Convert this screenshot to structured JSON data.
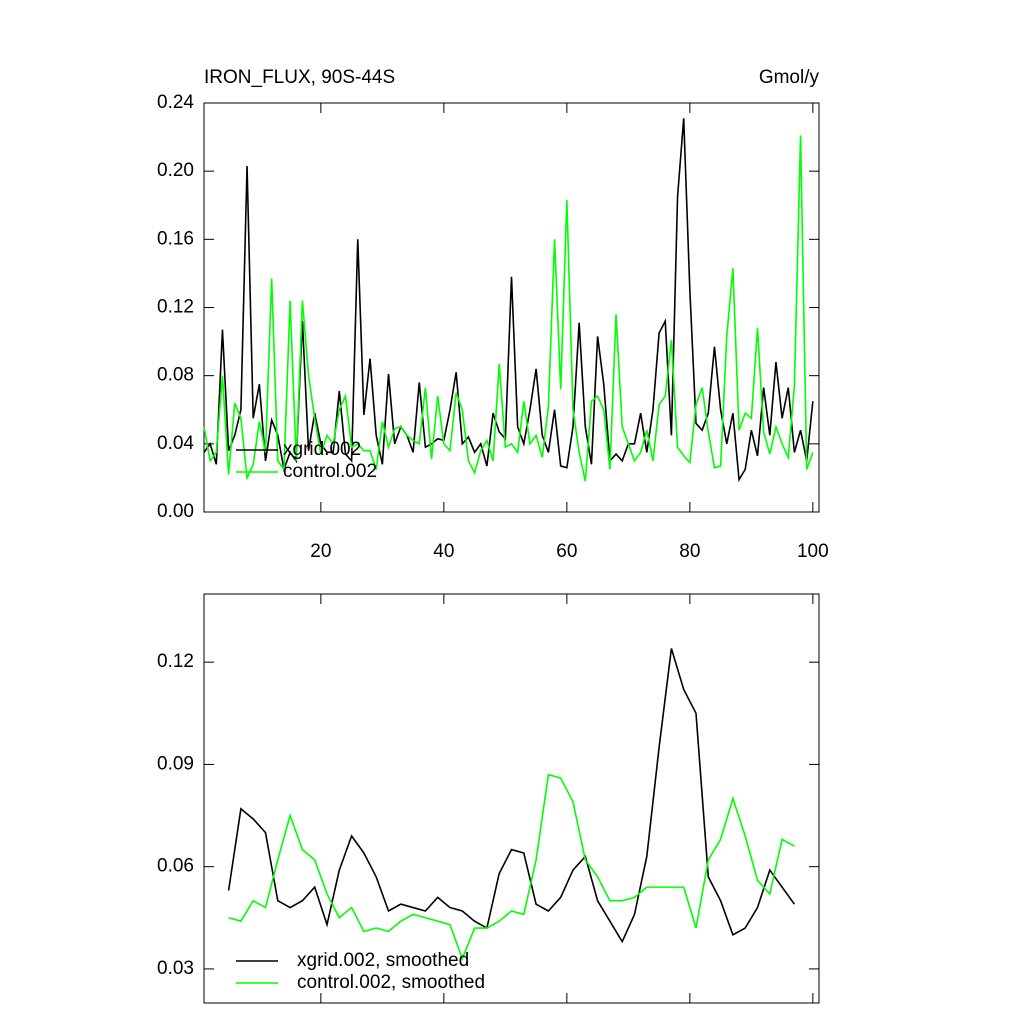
{
  "chart_data": [
    {
      "type": "line",
      "title": "IRON_FLUX, 90S-44S",
      "right_title": "Gmol/y",
      "x": [
        1,
        2,
        3,
        4,
        5,
        6,
        7,
        8,
        9,
        10,
        11,
        12,
        13,
        14,
        15,
        16,
        17,
        18,
        19,
        20,
        21,
        22,
        23,
        24,
        25,
        26,
        27,
        28,
        29,
        30,
        31,
        32,
        33,
        34,
        35,
        36,
        37,
        38,
        39,
        40,
        41,
        42,
        43,
        44,
        45,
        46,
        47,
        48,
        49,
        50,
        51,
        52,
        53,
        54,
        55,
        56,
        57,
        58,
        59,
        60,
        61,
        62,
        63,
        64,
        65,
        66,
        67,
        68,
        69,
        70,
        71,
        72,
        73,
        74,
        75,
        76,
        77,
        78,
        79,
        80,
        81,
        82,
        83,
        84,
        85,
        86,
        87,
        88,
        89,
        90,
        91,
        92,
        93,
        94,
        95,
        96,
        97,
        98,
        99,
        100
      ],
      "series": [
        {
          "name": "xgrid.002",
          "color": "#000000",
          "values": [
            0.035,
            0.04,
            0.028,
            0.107,
            0.036,
            0.045,
            0.06,
            0.203,
            0.055,
            0.075,
            0.03,
            0.054,
            0.045,
            0.025,
            0.035,
            0.03,
            0.112,
            0.036,
            0.058,
            0.04,
            0.035,
            0.035,
            0.071,
            0.034,
            0.03,
            0.16,
            0.057,
            0.09,
            0.045,
            0.028,
            0.081,
            0.04,
            0.05,
            0.045,
            0.035,
            0.076,
            0.038,
            0.04,
            0.043,
            0.042,
            0.06,
            0.082,
            0.04,
            0.044,
            0.035,
            0.04,
            0.027,
            0.058,
            0.047,
            0.043,
            0.138,
            0.05,
            0.04,
            0.06,
            0.084,
            0.045,
            0.035,
            0.06,
            0.027,
            0.026,
            0.05,
            0.111,
            0.05,
            0.028,
            0.103,
            0.075,
            0.03,
            0.034,
            0.03,
            0.04,
            0.04,
            0.058,
            0.035,
            0.06,
            0.105,
            0.112,
            0.045,
            0.185,
            0.231,
            0.13,
            0.052,
            0.048,
            0.058,
            0.097,
            0.06,
            0.04,
            0.058,
            0.019,
            0.025,
            0.048,
            0.033,
            0.073,
            0.045,
            0.088,
            0.055,
            0.073,
            0.035,
            0.048,
            0.03,
            0.065
          ]
        },
        {
          "name": "control.002",
          "color": "#00ff00",
          "values": [
            0.05,
            0.03,
            0.035,
            0.08,
            0.022,
            0.064,
            0.055,
            0.02,
            0.028,
            0.053,
            0.035,
            0.137,
            0.03,
            0.025,
            0.124,
            0.03,
            0.124,
            0.08,
            0.055,
            0.034,
            0.045,
            0.04,
            0.06,
            0.068,
            0.038,
            0.04,
            0.036,
            0.036,
            0.025,
            0.053,
            0.038,
            0.049,
            0.05,
            0.045,
            0.042,
            0.04,
            0.073,
            0.031,
            0.068,
            0.04,
            0.036,
            0.07,
            0.06,
            0.03,
            0.023,
            0.036,
            0.042,
            0.03,
            0.087,
            0.038,
            0.04,
            0.035,
            0.065,
            0.04,
            0.045,
            0.032,
            0.062,
            0.16,
            0.072,
            0.183,
            0.06,
            0.035,
            0.018,
            0.065,
            0.068,
            0.06,
            0.025,
            0.116,
            0.05,
            0.04,
            0.03,
            0.035,
            0.048,
            0.03,
            0.063,
            0.068,
            0.101,
            0.038,
            0.033,
            0.029,
            0.063,
            0.073,
            0.047,
            0.026,
            0.027,
            0.103,
            0.143,
            0.048,
            0.058,
            0.055,
            0.108,
            0.047,
            0.034,
            0.05,
            0.04,
            0.032,
            0.074,
            0.221,
            0.025,
            0.035
          ]
        }
      ],
      "xlim": [
        1,
        101
      ],
      "xticks": [
        20,
        40,
        60,
        80,
        100
      ],
      "ylim": [
        0,
        0.24
      ],
      "yticks": [
        {
          "value": 0,
          "label": "0.00"
        },
        0.04,
        0.08,
        0.12,
        0.16,
        {
          "value": 0.2,
          "label": "0.20"
        },
        0.24
      ],
      "legend": "lower left"
    },
    {
      "type": "line",
      "x": [
        5,
        7,
        9,
        11,
        13,
        15,
        17,
        19,
        21,
        23,
        25,
        27,
        29,
        31,
        33,
        35,
        37,
        39,
        41,
        43,
        45,
        47,
        49,
        51,
        53,
        55,
        57,
        59,
        61,
        63,
        65,
        67,
        69,
        71,
        73,
        75,
        77,
        79,
        81,
        83,
        85,
        87,
        89,
        91,
        93,
        95,
        97
      ],
      "series": [
        {
          "name": "xgrid.002, smoothed",
          "color": "#000000",
          "values": [
            0.053,
            0.077,
            0.074,
            0.07,
            0.05,
            0.048,
            0.05,
            0.054,
            0.043,
            0.059,
            0.069,
            0.064,
            0.057,
            0.047,
            0.049,
            0.048,
            0.047,
            0.051,
            0.048,
            0.047,
            0.044,
            0.042,
            0.058,
            0.065,
            0.064,
            0.049,
            0.047,
            0.051,
            0.059,
            0.063,
            0.05,
            0.044,
            0.038,
            0.046,
            0.063,
            0.095,
            0.124,
            0.112,
            0.105,
            0.057,
            0.05,
            0.04,
            0.042,
            0.048,
            0.059,
            0.054,
            0.049
          ]
        },
        {
          "name": "control.002, smoothed",
          "color": "#00ff00",
          "values": [
            0.045,
            0.044,
            0.05,
            0.048,
            0.062,
            0.075,
            0.065,
            0.062,
            0.052,
            0.045,
            0.048,
            0.041,
            0.042,
            0.041,
            0.044,
            0.046,
            0.045,
            0.044,
            0.043,
            0.033,
            0.042,
            0.042,
            0.044,
            0.047,
            0.046,
            0.062,
            0.087,
            0.086,
            0.079,
            0.062,
            0.057,
            0.05,
            0.05,
            0.051,
            0.054,
            0.054,
            0.054,
            0.054,
            0.042,
            0.062,
            0.068,
            0.08,
            0.069,
            0.056,
            0.052,
            0.068,
            0.066
          ]
        }
      ],
      "xlim": [
        1,
        101
      ],
      "xticks": [
        20,
        40,
        60,
        80,
        100
      ],
      "ylim": [
        0.02,
        0.14
      ],
      "yticks": [
        0.03,
        0.06,
        0.09,
        0.12
      ],
      "legend": "lower left"
    }
  ]
}
